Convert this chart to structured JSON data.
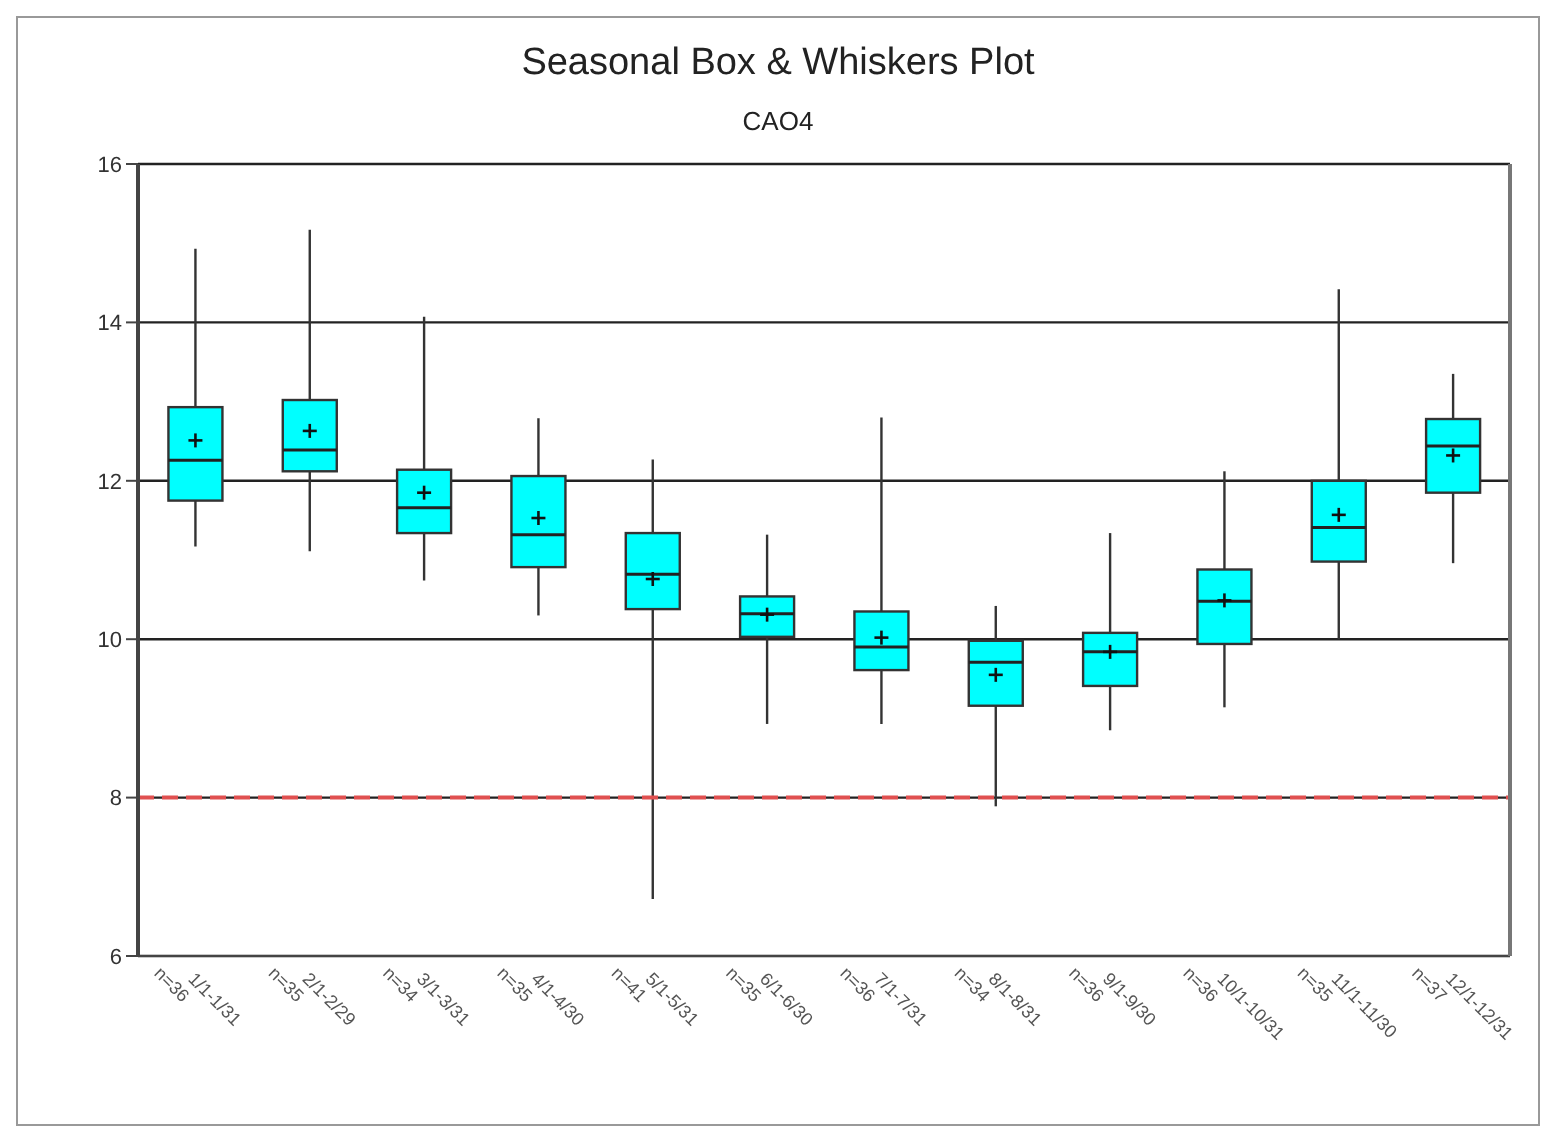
{
  "chart_data": {
    "type": "box",
    "title": "Seasonal Box & Whiskers Plot",
    "subtitle": "CAO4",
    "categories": [
      "1/1-1/31\nn=36",
      "2/1-2/29\nn=35",
      "3/1-3/31\nn=34",
      "4/1-4/30\nn=35",
      "5/1-5/31\nn=41",
      "6/1-6/30\nn=35",
      "7/1-7/31\nn=36",
      "8/1-8/31\nn=34",
      "9/1-9/30\nn=36",
      "10/1-10/31\nn=36",
      "11/1-11/30\nn=35",
      "12/1-12/31\nn=37"
    ],
    "color": "#00ffff",
    "boxes": [
      {
        "low": 11.17,
        "q1": 11.75,
        "median": 12.26,
        "q3": 12.93,
        "high": 14.93,
        "mean": 12.51
      },
      {
        "low": 11.11,
        "q1": 12.12,
        "median": 12.39,
        "q3": 13.02,
        "high": 15.17,
        "mean": 12.63
      },
      {
        "low": 10.74,
        "q1": 11.34,
        "median": 11.66,
        "q3": 12.14,
        "high": 14.07,
        "mean": 11.85
      },
      {
        "low": 10.3,
        "q1": 10.91,
        "median": 11.32,
        "q3": 12.06,
        "high": 12.79,
        "mean": 11.53
      },
      {
        "low": 6.72,
        "q1": 10.38,
        "median": 10.82,
        "q3": 11.34,
        "high": 12.27,
        "mean": 10.76
      },
      {
        "low": 8.93,
        "q1": 10.03,
        "median": 10.32,
        "q3": 10.54,
        "high": 11.32,
        "mean": 10.31
      },
      {
        "low": 8.93,
        "q1": 9.61,
        "median": 9.9,
        "q3": 10.35,
        "high": 12.8,
        "mean": 10.02
      },
      {
        "low": 7.89,
        "q1": 9.16,
        "median": 9.71,
        "q3": 9.98,
        "high": 10.42,
        "mean": 9.55
      },
      {
        "low": 8.85,
        "q1": 9.41,
        "median": 9.84,
        "q3": 10.08,
        "high": 11.34,
        "mean": 9.84
      },
      {
        "low": 9.14,
        "q1": 9.94,
        "median": 10.48,
        "q3": 10.88,
        "high": 12.12,
        "mean": 10.49
      },
      {
        "low": 10.0,
        "q1": 10.98,
        "median": 11.41,
        "q3": 12.0,
        "high": 14.42,
        "mean": 11.57
      },
      {
        "low": 10.96,
        "q1": 11.85,
        "median": 12.44,
        "q3": 12.78,
        "high": 13.35,
        "mean": 12.32
      }
    ],
    "ylim": [
      6,
      16
    ],
    "yticks": [
      6,
      8,
      10,
      12,
      14,
      16
    ],
    "grid": "y",
    "ref_lines": [
      {
        "axis": "y",
        "value": 8,
        "color": "#e05050",
        "line_style": "dashed"
      }
    ]
  }
}
